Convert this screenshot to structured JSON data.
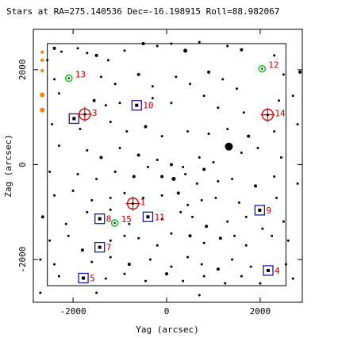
{
  "chart_data": {
    "type": "scatter",
    "title": "Stars at RA=275.140536 Dec=-16.198915 Roll=88.982067",
    "xlabel": "Yag (arcsec)",
    "ylabel": "Zag (arcsec)",
    "xlim": [
      -2850,
      2900
    ],
    "ylim": [
      -2900,
      2850
    ],
    "xticks": [
      -2000,
      0,
      2000
    ],
    "yticks": [
      -2000,
      0,
      2000
    ],
    "tick_labels_x": [
      "-2000",
      "0",
      "2000"
    ],
    "tick_labels_y": [
      "-2000",
      "0",
      "2000"
    ],
    "fov_box": {
      "ymin_yag": -2550,
      "ymax_yag": 2550,
      "ymin_zag": -2550,
      "ymax_zag": 2550
    },
    "colors": {
      "guide": "#c00000",
      "acq": "#1a1aa0",
      "fid": "#22c022",
      "stars": "#000000",
      "labels": "#c00000",
      "offchip": "#ff8000"
    },
    "guide_stars": [
      {
        "id": "1",
        "yag": -720,
        "zag": -820
      },
      {
        "id": "3",
        "yag": -1750,
        "zag": 1060
      },
      {
        "id": "14",
        "yag": 2160,
        "zag": 1050
      }
    ],
    "acq_stars": [
      {
        "id": "4",
        "yag": 2170,
        "zag": -2230
      },
      {
        "id": "5",
        "yag": -1780,
        "zag": -2390
      },
      {
        "id": "7",
        "yag": -1430,
        "zag": -1740
      },
      {
        "id": "8",
        "yag": -1430,
        "zag": -1140
      },
      {
        "id": "9",
        "yag": 1990,
        "zag": -960
      },
      {
        "id": "10",
        "yag": -640,
        "zag": 1250
      },
      {
        "id": "11",
        "yag": -400,
        "zag": -1100
      }
    ],
    "unlabeled_acq_stars": [
      {
        "yag": -1980,
        "zag": 970
      }
    ],
    "fid_lights": [
      {
        "id": "12",
        "yag": 2040,
        "zag": 2020
      },
      {
        "id": "13",
        "yag": -2090,
        "zag": 1820
      },
      {
        "id": "15",
        "yag": -1110,
        "zag": -1230
      }
    ],
    "field_stars": [
      [
        -2400,
        2450,
        2
      ],
      [
        -2250,
        2380,
        1.5
      ],
      [
        -1900,
        2450,
        1.5
      ],
      [
        -1700,
        2350,
        1.5
      ],
      [
        -1500,
        2300,
        2
      ],
      [
        -1250,
        2200,
        1.5
      ],
      [
        -900,
        2400,
        1.5
      ],
      [
        -500,
        2550,
        2
      ],
      [
        -200,
        2500,
        1.5
      ],
      [
        100,
        2550,
        1.5
      ],
      [
        400,
        2400,
        2.5
      ],
      [
        700,
        2580,
        1.5
      ],
      [
        1300,
        2500,
        1.5
      ],
      [
        1600,
        2420,
        2
      ],
      [
        2300,
        2300,
        1.5
      ],
      [
        -2550,
        2200,
        1.5
      ],
      [
        -2400,
        1800,
        1.5
      ],
      [
        -1400,
        1850,
        1.5
      ],
      [
        -1100,
        1700,
        1.5
      ],
      [
        -600,
        1900,
        2
      ],
      [
        -300,
        1650,
        1.5
      ],
      [
        200,
        1850,
        1.5
      ],
      [
        500,
        1700,
        1.5
      ],
      [
        900,
        1950,
        2
      ],
      [
        1200,
        1800,
        1.5
      ],
      [
        1500,
        1600,
        1.5
      ],
      [
        2500,
        1900,
        1.5
      ],
      [
        2850,
        1950,
        2
      ],
      [
        -2300,
        1500,
        1.5
      ],
      [
        -1550,
        1350,
        2
      ],
      [
        -1300,
        1250,
        1.5
      ],
      [
        -1000,
        1300,
        1.5
      ],
      [
        -300,
        1400,
        1.5
      ],
      [
        100,
        1300,
        1.5
      ],
      [
        800,
        1450,
        1.5
      ],
      [
        1100,
        1200,
        1.5
      ],
      [
        1650,
        1100,
        1.5
      ],
      [
        2400,
        1350,
        1.5
      ],
      [
        2700,
        1450,
        1.5
      ],
      [
        -2450,
        850,
        1.5
      ],
      [
        -1850,
        750,
        1.5
      ],
      [
        -1200,
        900,
        1.5
      ],
      [
        -850,
        700,
        1.5
      ],
      [
        -450,
        800,
        2
      ],
      [
        -100,
        600,
        1.5
      ],
      [
        450,
        700,
        1.5
      ],
      [
        900,
        650,
        1.5
      ],
      [
        1300,
        750,
        1.5
      ],
      [
        1750,
        600,
        2
      ],
      [
        2300,
        700,
        1.5
      ],
      [
        2800,
        850,
        1.5
      ],
      [
        -2300,
        400,
        1.5
      ],
      [
        -1700,
        300,
        1.5
      ],
      [
        -1400,
        150,
        2
      ],
      [
        -1000,
        350,
        1.5
      ],
      [
        -600,
        200,
        2
      ],
      [
        -200,
        100,
        1.5
      ],
      [
        100,
        0,
        2
      ],
      [
        350,
        -50,
        1.5
      ],
      [
        700,
        150,
        1.5
      ],
      [
        1000,
        50,
        1.5
      ],
      [
        1330,
        380,
        5
      ],
      [
        1600,
        250,
        1.5
      ],
      [
        1950,
        350,
        1.5
      ],
      [
        2450,
        150,
        1.5
      ],
      [
        -2500,
        -150,
        1.5
      ],
      [
        -1900,
        -200,
        1.5
      ],
      [
        -1500,
        -300,
        1.5
      ],
      [
        -1100,
        -150,
        1.5
      ],
      [
        -700,
        -250,
        2
      ],
      [
        -400,
        -50,
        1.5
      ],
      [
        -100,
        -250,
        2
      ],
      [
        150,
        -300,
        2.5
      ],
      [
        400,
        -200,
        1.5
      ],
      [
        650,
        -400,
        1.5
      ],
      [
        800,
        -100,
        2
      ],
      [
        1100,
        -350,
        1.5
      ],
      [
        1400,
        -300,
        1.5
      ],
      [
        1900,
        -450,
        2
      ],
      [
        2300,
        -250,
        1.5
      ],
      [
        2800,
        -400,
        1.5
      ],
      [
        -2400,
        -650,
        1.5
      ],
      [
        -2000,
        -550,
        1.5
      ],
      [
        -1600,
        -750,
        1.5
      ],
      [
        -1200,
        -700,
        1.5
      ],
      [
        -900,
        -600,
        1.5
      ],
      [
        -500,
        -700,
        1.5
      ],
      [
        -100,
        -650,
        1.5
      ],
      [
        250,
        -600,
        2
      ],
      [
        450,
        -850,
        1.5
      ],
      [
        750,
        -750,
        1.5
      ],
      [
        1050,
        -700,
        1.5
      ],
      [
        1550,
        -800,
        1.5
      ],
      [
        2350,
        -700,
        1.5
      ],
      [
        -2650,
        -1100,
        2
      ],
      [
        -2150,
        -1250,
        1.5
      ],
      [
        -1700,
        -1000,
        1.5
      ],
      [
        -1200,
        -950,
        1.5
      ],
      [
        -800,
        -1250,
        1.5
      ],
      [
        -100,
        -1150,
        1.5
      ],
      [
        300,
        -1000,
        1.5
      ],
      [
        550,
        -1100,
        1.5
      ],
      [
        850,
        -1300,
        2
      ],
      [
        1300,
        -1200,
        1.5
      ],
      [
        1700,
        -1100,
        1.5
      ],
      [
        2050,
        -1350,
        1.5
      ],
      [
        2500,
        -1200,
        1.5
      ],
      [
        -2500,
        -1600,
        1.5
      ],
      [
        -2100,
        -1500,
        1.5
      ],
      [
        -1800,
        -1800,
        2
      ],
      [
        -1200,
        -1600,
        1.5
      ],
      [
        -900,
        -1500,
        1.5
      ],
      [
        -600,
        -1550,
        1.5
      ],
      [
        -200,
        -1700,
        1.5
      ],
      [
        100,
        -1450,
        1.5
      ],
      [
        500,
        -1500,
        2
      ],
      [
        800,
        -1650,
        1.5
      ],
      [
        1150,
        -1550,
        2
      ],
      [
        1450,
        -1500,
        1.5
      ],
      [
        1700,
        -1700,
        1.5
      ],
      [
        2250,
        -1500,
        1.5
      ],
      [
        2600,
        -1600,
        1.5
      ],
      [
        -2700,
        -2000,
        1.5
      ],
      [
        -2400,
        -2100,
        1.5
      ],
      [
        -1600,
        -2050,
        1.5
      ],
      [
        -1200,
        -1950,
        1.5
      ],
      [
        -800,
        -2100,
        2
      ],
      [
        -350,
        -2000,
        1.5
      ],
      [
        100,
        -2150,
        1.5
      ],
      [
        450,
        -1950,
        1.5
      ],
      [
        750,
        -2100,
        1.5
      ],
      [
        1100,
        -2200,
        2
      ],
      [
        1400,
        -2000,
        1.5
      ],
      [
        1800,
        -2150,
        1.5
      ],
      [
        2550,
        -2100,
        1.5
      ],
      [
        -2300,
        -2350,
        1.5
      ],
      [
        -1300,
        -2400,
        1.5
      ],
      [
        -900,
        -2300,
        1.5
      ],
      [
        -450,
        -2450,
        1.5
      ],
      [
        0,
        -2300,
        2
      ],
      [
        350,
        -2450,
        1.5
      ],
      [
        800,
        -2350,
        1.5
      ],
      [
        1250,
        -2500,
        1.5
      ],
      [
        1600,
        -2350,
        1.5
      ],
      [
        2000,
        -2500,
        1.5
      ],
      [
        2700,
        -2400,
        1.5
      ],
      [
        -1500,
        -2700,
        1.5
      ],
      [
        700,
        -2750,
        1.5
      ],
      [
        -2700,
        -2700,
        1.5
      ]
    ],
    "offchip_marks": [
      {
        "yag": -2660,
        "zag": 2370
      },
      {
        "yag": -2660,
        "zag": 2200
      },
      {
        "yag": -2660,
        "zag": 1980
      },
      {
        "yag": -2660,
        "zag": 1470
      },
      {
        "yag": -2660,
        "zag": 1150
      }
    ]
  }
}
